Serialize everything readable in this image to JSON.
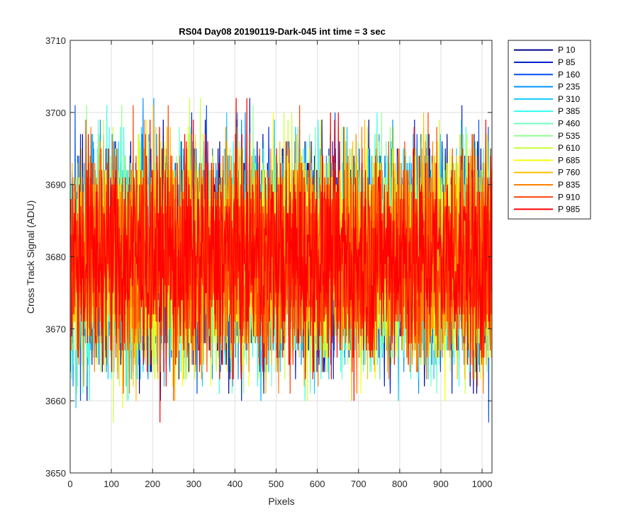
{
  "chart_data": {
    "type": "line",
    "title": "RS04 Day08 20190119-Dark-045 int time = 3 sec",
    "xlabel": "Pixels",
    "ylabel": "Cross Track Signal (ADU)",
    "xlim": [
      0,
      1024
    ],
    "ylim": [
      3650,
      3710
    ],
    "xticks": [
      "0",
      "100",
      "200",
      "300",
      "400",
      "500",
      "600",
      "700",
      "800",
      "900",
      "1000"
    ],
    "yticks": [
      "3650",
      "3660",
      "3670",
      "3680",
      "3690",
      "3700",
      "3710"
    ],
    "grid": true,
    "legend_position": "outside-top-right",
    "x_points": 1024,
    "signal_mean": 3680,
    "signal_min": 3652,
    "signal_max": 3710,
    "series": [
      {
        "name": "P 10",
        "color": "#00008f"
      },
      {
        "name": "P 85",
        "color": "#0020cf"
      },
      {
        "name": "P 160",
        "color": "#0050ef"
      },
      {
        "name": "P 235",
        "color": "#0090ff"
      },
      {
        "name": "P 310",
        "color": "#10c8ff"
      },
      {
        "name": "P 385",
        "color": "#30ffef"
      },
      {
        "name": "P 460",
        "color": "#70ffc0"
      },
      {
        "name": "P 535",
        "color": "#90ff90"
      },
      {
        "name": "P 610",
        "color": "#c8ff40"
      },
      {
        "name": "P 685",
        "color": "#f4ff10"
      },
      {
        "name": "P 760",
        "color": "#ffc000"
      },
      {
        "name": "P 835",
        "color": "#ff8000"
      },
      {
        "name": "P 910",
        "color": "#ff4000"
      },
      {
        "name": "P 985",
        "color": "#ff0000"
      }
    ]
  }
}
